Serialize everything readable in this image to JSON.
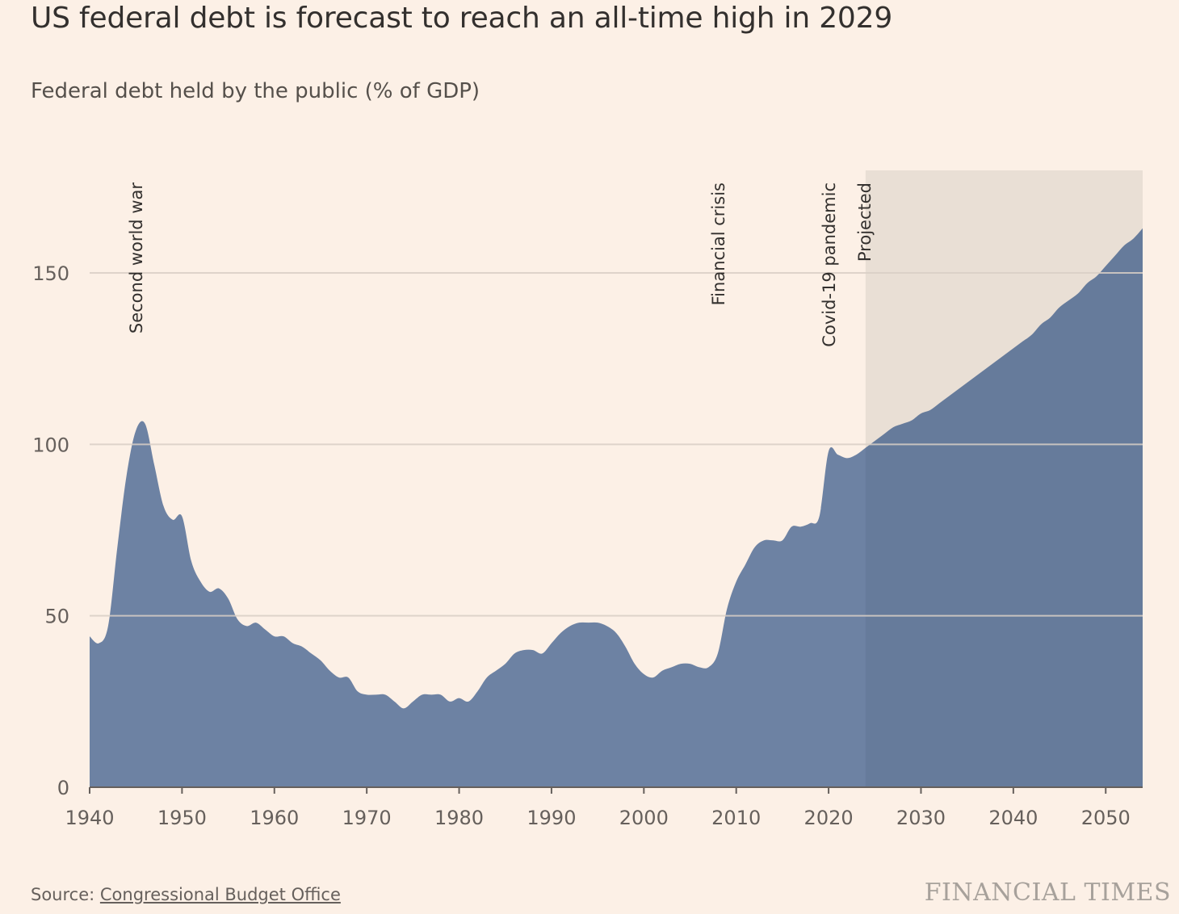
{
  "header": {
    "title": "US federal debt is forecast to reach an all-time high in 2029",
    "subtitle": "Federal debt held by the public (% of GDP)"
  },
  "footer": {
    "source_prefix": "Source: ",
    "source_link": "Congressional Budget Office",
    "brand": "FINANCIAL TIMES"
  },
  "colors": {
    "background": "#FCF0E6",
    "area_fill": "#6D82A3",
    "projected_shade": "#E9DFD5",
    "gridline": "#D9CFC6",
    "axis": "#66605C"
  },
  "chart_data": {
    "type": "area",
    "title": "US federal debt is forecast to reach an all-time high in 2029",
    "subtitle": "Federal debt held by the public (% of GDP)",
    "xlim": [
      1940,
      2054
    ],
    "ylim": [
      0,
      180
    ],
    "x_ticks": [
      1940,
      1950,
      1960,
      1970,
      1980,
      1990,
      2000,
      2010,
      2020,
      2030,
      2040,
      2050
    ],
    "y_ticks": [
      0,
      50,
      100,
      150
    ],
    "grid": true,
    "projected_from": 2024,
    "projected_label": "Projected",
    "annotations": [
      {
        "x": 1945,
        "label": "Second world war"
      },
      {
        "x": 2008,
        "label": "Financial crisis"
      },
      {
        "x": 2020,
        "label": "Covid-19 pandemic"
      }
    ],
    "x": [
      1940,
      1941,
      1942,
      1943,
      1944,
      1945,
      1946,
      1947,
      1948,
      1949,
      1950,
      1951,
      1952,
      1953,
      1954,
      1955,
      1956,
      1957,
      1958,
      1959,
      1960,
      1961,
      1962,
      1963,
      1964,
      1965,
      1966,
      1967,
      1968,
      1969,
      1970,
      1971,
      1972,
      1973,
      1974,
      1975,
      1976,
      1977,
      1978,
      1979,
      1980,
      1981,
      1982,
      1983,
      1984,
      1985,
      1986,
      1987,
      1988,
      1989,
      1990,
      1991,
      1992,
      1993,
      1994,
      1995,
      1996,
      1997,
      1998,
      1999,
      2000,
      2001,
      2002,
      2003,
      2004,
      2005,
      2006,
      2007,
      2008,
      2009,
      2010,
      2011,
      2012,
      2013,
      2014,
      2015,
      2016,
      2017,
      2018,
      2019,
      2020,
      2021,
      2022,
      2023,
      2024,
      2025,
      2026,
      2027,
      2028,
      2029,
      2030,
      2031,
      2032,
      2033,
      2034,
      2035,
      2036,
      2037,
      2038,
      2039,
      2040,
      2041,
      2042,
      2043,
      2044,
      2045,
      2046,
      2047,
      2048,
      2049,
      2050,
      2051,
      2052,
      2053,
      2054
    ],
    "values": [
      44,
      42,
      47,
      70,
      91,
      104,
      106,
      94,
      82,
      78,
      79,
      66,
      60,
      57,
      58,
      55,
      49,
      47,
      48,
      46,
      44,
      44,
      42,
      41,
      39,
      37,
      34,
      32,
      32,
      28,
      27,
      27,
      27,
      25,
      23,
      25,
      27,
      27,
      27,
      25,
      26,
      25,
      28,
      32,
      34,
      36,
      39,
      40,
      40,
      39,
      42,
      45,
      47,
      48,
      48,
      48,
      47,
      45,
      41,
      36,
      33,
      32,
      34,
      35,
      36,
      36,
      35,
      35,
      39,
      52,
      60,
      65,
      70,
      72,
      72,
      72,
      76,
      76,
      77,
      79,
      98,
      97,
      96,
      97,
      99,
      101,
      103,
      105,
      106,
      107,
      109,
      110,
      112,
      114,
      116,
      118,
      120,
      122,
      124,
      126,
      128,
      130,
      132,
      135,
      137,
      140,
      142,
      144,
      147,
      149,
      152,
      155,
      158,
      160,
      163
    ]
  }
}
